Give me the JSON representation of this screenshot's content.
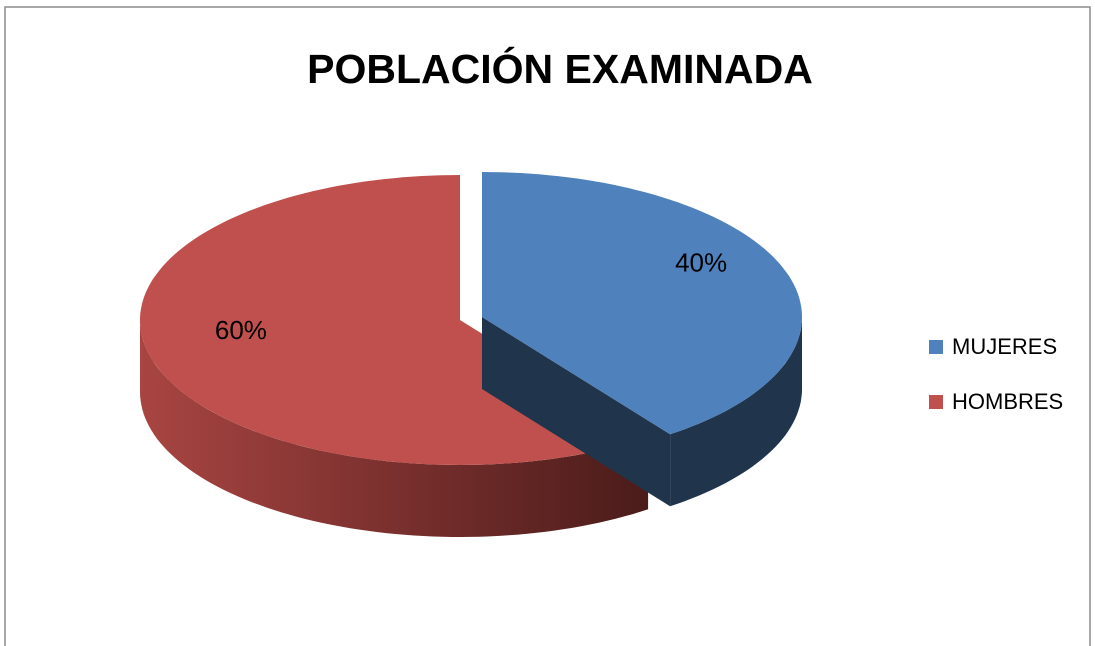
{
  "chart_data": {
    "type": "pie",
    "title": "POBLACIÓN EXAMINADA",
    "categories": [
      "MUJERES",
      "HOMBRES"
    ],
    "values": [
      40,
      60
    ],
    "value_labels": [
      "40%",
      "60%"
    ],
    "colors": [
      "#4f81bd",
      "#c0504d"
    ],
    "legend": "right"
  }
}
